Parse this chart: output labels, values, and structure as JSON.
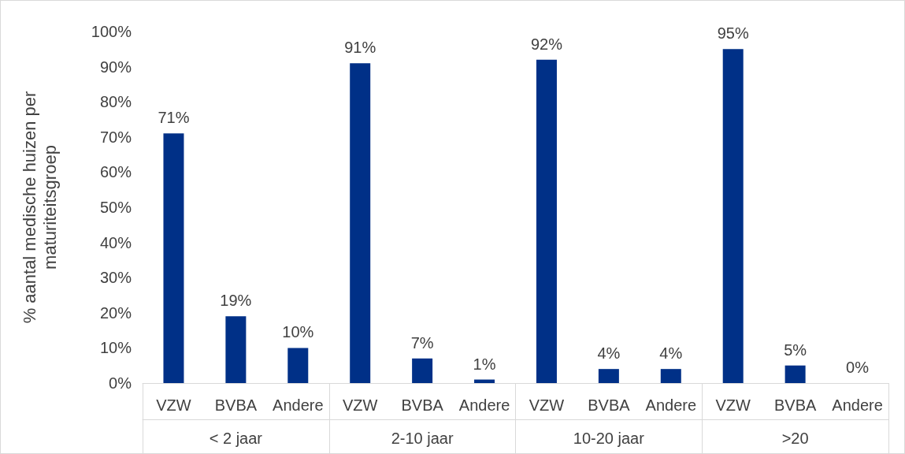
{
  "chart_data": {
    "type": "bar",
    "ylabel": "% aantal medische huizen per maturiteitsgroep",
    "categories": [
      "VZW",
      "BVBA",
      "Andere",
      "VZW",
      "BVBA",
      "Andere",
      "VZW",
      "BVBA",
      "Andere",
      "VZW",
      "BVBA",
      "Andere"
    ],
    "values": [
      71,
      19,
      10,
      91,
      7,
      1,
      92,
      4,
      4,
      95,
      5,
      0
    ],
    "color": "#003087",
    "annotations": [
      "< 2 jaar",
      "2-10 jaar",
      "10-20 jaar",
      ">20"
    ],
    "ylim": [
      0,
      100
    ],
    "yticks": [
      {
        "value": 0,
        "label": "0%"
      },
      {
        "value": 10,
        "label": "10%"
      },
      {
        "value": 20,
        "label": "20%"
      },
      {
        "value": 30,
        "label": "30%"
      },
      {
        "value": 40,
        "label": "40%"
      },
      {
        "value": 50,
        "label": "50%"
      },
      {
        "value": 60,
        "label": "60%"
      },
      {
        "value": 70,
        "label": "70%"
      },
      {
        "value": 80,
        "label": "80%"
      },
      {
        "value": 90,
        "label": "90%"
      },
      {
        "value": 100,
        "label": "100%"
      }
    ],
    "value_labels": [
      "71%",
      "19%",
      "10%",
      "91%",
      "7%",
      "1%",
      "92%",
      "4%",
      "4%",
      "95%",
      "5%",
      "0%"
    ],
    "grid": false
  }
}
